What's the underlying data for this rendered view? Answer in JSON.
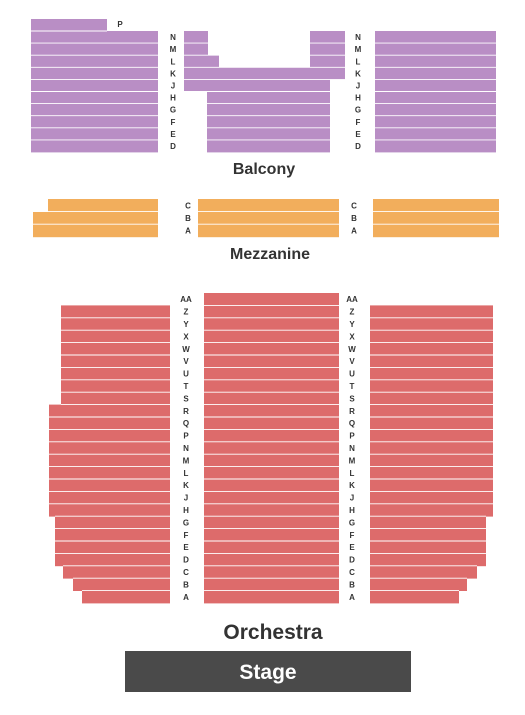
{
  "colors": {
    "balcony": "#b98ec5",
    "mezzanine": "#f2ae5c",
    "orchestra": "#dd6b6b",
    "stage": "#4a4a4a",
    "row_divider": "#ffffff",
    "label": "#333333"
  },
  "sections": {
    "balcony": {
      "label": "Balcony",
      "rows": [
        "N",
        "M",
        "L",
        "K",
        "J",
        "H",
        "G",
        "F",
        "E",
        "D"
      ],
      "extra_row": "P"
    },
    "mezzanine": {
      "label": "Mezzanine",
      "rows": [
        "C",
        "B",
        "A"
      ]
    },
    "orchestra": {
      "label": "Orchestra",
      "rows": [
        "AA",
        "Z",
        "Y",
        "X",
        "W",
        "V",
        "U",
        "T",
        "S",
        "R",
        "Q",
        "P",
        "N",
        "M",
        "L",
        "K",
        "J",
        "H",
        "G",
        "F",
        "E",
        "D",
        "C",
        "B",
        "A"
      ]
    }
  },
  "stage": {
    "label": "Stage"
  }
}
